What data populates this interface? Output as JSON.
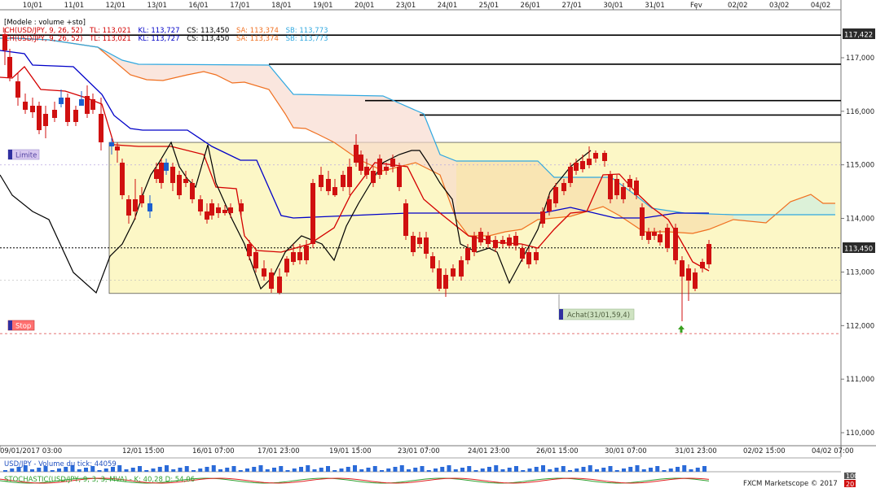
{
  "header": {
    "model": "[Modele : volume +sto]",
    "indicator_rows": [
      {
        "name": "ICH(USD/JPY, 9, 26, 52)",
        "items": [
          {
            "label": "TL: 113,021",
            "color": "#d40000"
          },
          {
            "label": "KL: 113,727",
            "color": "#0000c8"
          },
          {
            "label": "CS: 113,450",
            "color": "#000000"
          },
          {
            "label": "SA: 113,374",
            "color": "#f07020"
          },
          {
            "label": "SB: 113,773",
            "color": "#30a8e0"
          }
        ]
      },
      {
        "name": "ICH(USD/JPY, 9, 26, 52)",
        "items": [
          {
            "label": "TL: 113,021",
            "color": "#d40000"
          },
          {
            "label": "KL: 113,727",
            "color": "#0000c8"
          },
          {
            "label": "CS: 113,450",
            "color": "#000000"
          },
          {
            "label": "SA: 113,374",
            "color": "#f07020"
          },
          {
            "label": "SB: 113,773",
            "color": "#30a8e0"
          }
        ]
      }
    ]
  },
  "top_dates": [
    "10/01",
    "11/01",
    "12/01",
    "13/01",
    "16/01",
    "17/01",
    "18/01",
    "19/01",
    "20/01",
    "23/01",
    "24/01",
    "25/01",
    "26/01",
    "27/01",
    "30/01",
    "31/01",
    "Fev",
    "02/02",
    "03/02",
    "04/02"
  ],
  "bottom_dates": [
    "09/01/2017 03:00",
    "12/01 15:00",
    "16/01 07:00",
    "17/01 23:00",
    "19/01 15:00",
    "23/01 07:00",
    "24/01 23:00",
    "26/01 15:00",
    "30/01 07:00",
    "31/01 23:00",
    "02/02 15:00",
    "04/02 07:00"
  ],
  "price_ticks": [
    "117,000",
    "116,000",
    "115,000",
    "114,000",
    "113,000",
    "112,000",
    "111,000",
    "110,000"
  ],
  "price_badges": {
    "top": "117,422",
    "current": "113,450"
  },
  "annotations": {
    "limit": "Limite",
    "stop": "Stop",
    "buy": "Achat(31/01,59,4)"
  },
  "volume_label": "USD/JPY - Volume du tick: 44059",
  "stoch_label": "STOCHASTIC(USD/JPY, 9, 3, 3, MVA) - K: 40,28  D: 54,06",
  "stoch_scale": {
    "top": "100",
    "bottom": "20"
  },
  "footer": "FXCM Marketscope © 2017",
  "colors": {
    "tenkan": "#d40000",
    "kijun": "#0000c8",
    "chikou": "#000000",
    "span_a": "#f07020",
    "span_b": "#30a8e0",
    "bull": "#1c5fd0",
    "bear": "#d01010"
  },
  "chart_data": {
    "type": "line",
    "symbol": "USD/JPY",
    "ylim": [
      110.0,
      117.6
    ],
    "y_ticks": [
      110,
      111,
      112,
      113,
      114,
      115,
      116,
      117
    ],
    "x": [
      "10/01",
      "11/01",
      "12/01",
      "13/01",
      "16/01",
      "17/01",
      "18/01",
      "19/01",
      "20/01",
      "23/01",
      "24/01",
      "25/01",
      "26/01",
      "27/01",
      "30/01",
      "31/01",
      "Fev"
    ],
    "candles_close_approx": [
      116.6,
      115.9,
      115.4,
      114.9,
      114.3,
      113.7,
      112.9,
      114.8,
      114.6,
      113.9,
      113.1,
      113.6,
      113.9,
      114.8,
      114.2,
      113.2,
      113.45
    ],
    "series": [
      {
        "name": "TL",
        "last": 113.021
      },
      {
        "name": "KL",
        "last": 113.727
      },
      {
        "name": "CS",
        "last": 113.45
      },
      {
        "name": "SA",
        "last": 113.374
      },
      {
        "name": "SB",
        "last": 113.773
      }
    ],
    "levels": {
      "horizontal": [
        117.422,
        116.88,
        116.2,
        115.93
      ],
      "current_price": 113.45,
      "limit": 115.0,
      "stop": 111.85,
      "range_box": [
        112.6,
        115.42
      ]
    },
    "grid": true,
    "legend": "top-left"
  }
}
